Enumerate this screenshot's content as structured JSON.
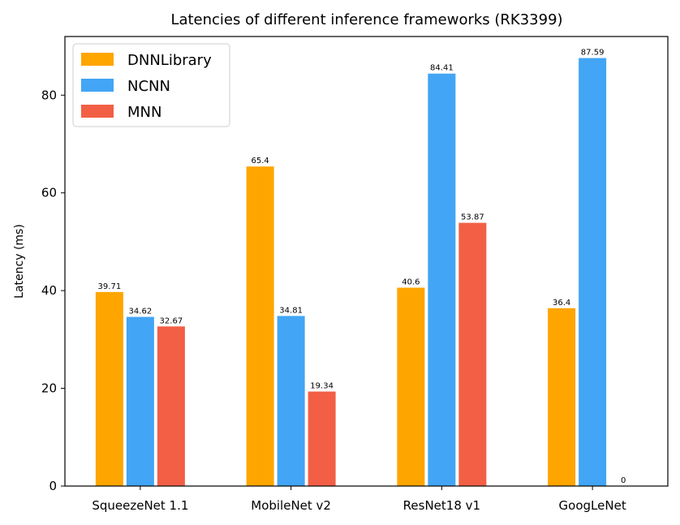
{
  "chart_data": {
    "type": "bar",
    "title": "Latencies of different inference frameworks (RK3399)",
    "xlabel": "",
    "ylabel": "Latency (ms)",
    "categories": [
      "SqueezeNet 1.1",
      "MobileNet v2",
      "ResNet18 v1",
      "GoogLeNet"
    ],
    "series": [
      {
        "name": "DNNLibrary",
        "color": "#FFA500",
        "values": [
          39.71,
          65.4,
          40.6,
          36.4
        ],
        "labels": [
          "39.71",
          "65.4",
          "40.6",
          "36.4"
        ]
      },
      {
        "name": "NCNN",
        "color": "#42A5F5",
        "values": [
          34.62,
          34.81,
          84.41,
          87.59
        ],
        "labels": [
          "34.62",
          "34.81",
          "84.41",
          "87.59"
        ]
      },
      {
        "name": "MNN",
        "color": "#F25F45",
        "values": [
          32.67,
          19.34,
          53.87,
          0
        ],
        "labels": [
          "32.67",
          "19.34",
          "53.87",
          "0"
        ]
      }
    ],
    "ylim": [
      0,
      92
    ],
    "yticks": [
      0,
      20,
      40,
      60,
      80
    ],
    "ytick_labels": [
      "0",
      "20",
      "40",
      "60",
      "80"
    ],
    "legend_position": "top-left",
    "grid": false
  }
}
